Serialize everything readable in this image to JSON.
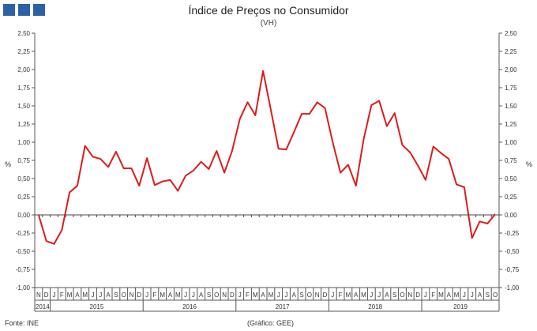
{
  "header": {
    "title": "Índice de Preços no Consumidor",
    "subtitle": "(VH)"
  },
  "footer": {
    "source": "Fonte: INE",
    "credit": "(Gráfico: GEE)"
  },
  "colors": {
    "line": "#dd1b1b",
    "logo": "#2c62a3",
    "axis": "#555555"
  },
  "chart_data": {
    "type": "line",
    "title": "Índice de Preços no Consumidor",
    "subtitle": "(VH)",
    "ylabel": "%",
    "ylim": [
      -1.0,
      2.5
    ],
    "ytick_step": 0.25,
    "ytick_labels": [
      "-1,00",
      "-0,75",
      "-0,50",
      "-0,25",
      "0,00",
      "0,25",
      "0,50",
      "0,75",
      "1,00",
      "1,25",
      "1,50",
      "1,75",
      "2,00",
      "2,25",
      "2,50"
    ],
    "grid": false,
    "legend": "none",
    "month_labels": [
      "N",
      "D",
      "J",
      "F",
      "M",
      "A",
      "M",
      "J",
      "J",
      "A",
      "S",
      "O",
      "N",
      "D",
      "J",
      "F",
      "M",
      "A",
      "M",
      "J",
      "J",
      "A",
      "S",
      "O",
      "N",
      "D",
      "J",
      "F",
      "M",
      "A",
      "M",
      "J",
      "J",
      "A",
      "S",
      "O",
      "N",
      "D",
      "J",
      "F",
      "M",
      "A",
      "M",
      "J",
      "J",
      "A",
      "S",
      "O",
      "N",
      "D",
      "J",
      "F",
      "M",
      "A",
      "M",
      "J",
      "J",
      "A",
      "S",
      "O"
    ],
    "years": [
      {
        "label": "2014",
        "start": 0,
        "count": 2
      },
      {
        "label": "2015",
        "start": 2,
        "count": 12
      },
      {
        "label": "2016",
        "start": 14,
        "count": 12
      },
      {
        "label": "2017",
        "start": 26,
        "count": 12
      },
      {
        "label": "2018",
        "start": 38,
        "count": 12
      },
      {
        "label": "2019",
        "start": 50,
        "count": 10
      }
    ],
    "series": [
      {
        "values": [
          0.0,
          -0.36,
          -0.4,
          -0.21,
          0.31,
          0.4,
          0.95,
          0.8,
          0.77,
          0.66,
          0.87,
          0.64,
          0.64,
          0.4,
          0.78,
          0.41,
          0.46,
          0.48,
          0.33,
          0.54,
          0.61,
          0.73,
          0.63,
          0.88,
          0.58,
          0.88,
          1.32,
          1.55,
          1.37,
          1.98,
          1.45,
          0.91,
          0.9,
          1.14,
          1.39,
          1.39,
          1.55,
          1.47,
          1.0,
          0.58,
          0.69,
          0.4,
          1.04,
          1.51,
          1.57,
          1.22,
          1.4,
          0.96,
          0.86,
          0.68,
          0.48,
          0.94,
          0.85,
          0.77,
          0.42,
          0.38,
          -0.32,
          -0.09,
          -0.12,
          0.01
        ]
      }
    ]
  }
}
